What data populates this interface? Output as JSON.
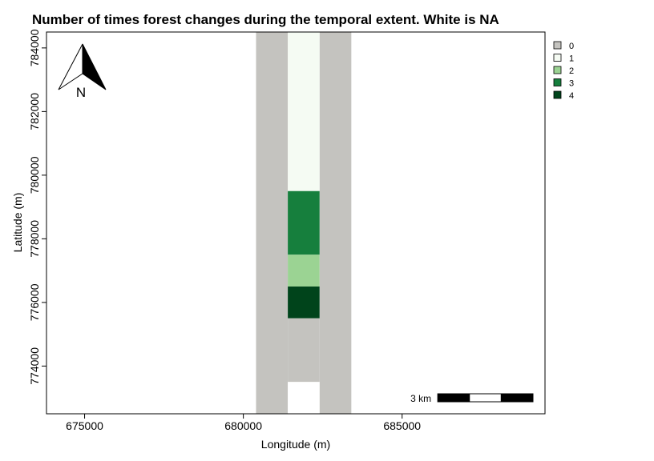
{
  "title": "Number of times forest changes during the temporal extent. White is NA",
  "xlabel": "Longitude (m)",
  "ylabel": "Latitude (m)",
  "x_ticks": [
    "675000",
    "680000",
    "685000"
  ],
  "y_ticks": [
    "774000",
    "776000",
    "778000",
    "780000",
    "782000",
    "784000"
  ],
  "north_label": "N",
  "scale_bar_label": "3 km",
  "colors": {
    "background": "#ffffff",
    "na": "#ffffff",
    "0": "#c4c3bf",
    "1": "#f5fbf3",
    "2": "#9bd393",
    "3": "#167f3d",
    "4": "#00441b"
  },
  "chart_data": {
    "type": "heatmap",
    "title": "Number of times forest changes during the temporal extent. White is NA",
    "xlabel": "Longitude (m)",
    "ylabel": "Latitude (m)",
    "xlim": [
      673800,
      689500
    ],
    "ylim": [
      772500,
      784500
    ],
    "x_ticks": [
      675000,
      680000,
      685000
    ],
    "y_ticks": [
      774000,
      776000,
      778000,
      780000,
      782000,
      784000
    ],
    "grid": false,
    "legend_position": "right",
    "legend": [
      {
        "label": "0",
        "color": "#c4c3bf"
      },
      {
        "label": "1",
        "color": "#f5fbf3"
      },
      {
        "label": "2",
        "color": "#9bd393"
      },
      {
        "label": "3",
        "color": "#167f3d"
      },
      {
        "label": "4",
        "color": "#00441b"
      }
    ],
    "cells": [
      {
        "xmin": 680400,
        "xmax": 681400,
        "ymin": 772500,
        "ymax": 784500,
        "value": 0
      },
      {
        "xmin": 682400,
        "xmax": 683400,
        "ymin": 772500,
        "ymax": 784500,
        "value": 0
      },
      {
        "xmin": 681400,
        "xmax": 682400,
        "ymin": 779500,
        "ymax": 784500,
        "value": 1
      },
      {
        "xmin": 681400,
        "xmax": 682400,
        "ymin": 777500,
        "ymax": 779500,
        "value": 3
      },
      {
        "xmin": 681400,
        "xmax": 682400,
        "ymin": 776500,
        "ymax": 777500,
        "value": 2
      },
      {
        "xmin": 681400,
        "xmax": 682400,
        "ymin": 775500,
        "ymax": 776500,
        "value": 4
      },
      {
        "xmin": 681400,
        "xmax": 682400,
        "ymin": 773500,
        "ymax": 775500,
        "value": 0
      },
      {
        "xmin": 681400,
        "xmax": 682400,
        "ymin": 772500,
        "ymax": 773500,
        "value": "NA"
      }
    ],
    "scale_bar": {
      "label": "3 km",
      "length_m": 3000
    },
    "north_arrow": true
  }
}
